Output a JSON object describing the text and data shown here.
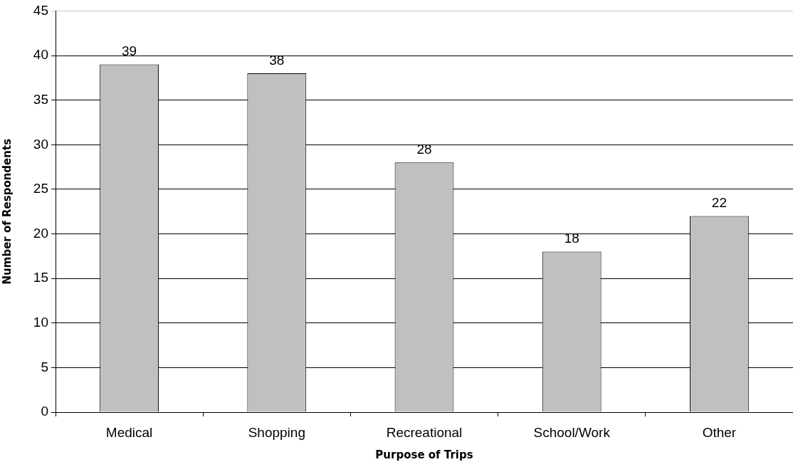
{
  "chart_data": {
    "type": "bar",
    "xlabel": "Purpose of Trips",
    "ylabel": "Number of Respondents",
    "categories": [
      "Medical",
      "Shopping",
      "Recreational",
      "School/Work",
      "Other"
    ],
    "values": [
      39,
      38,
      28,
      18,
      22
    ],
    "color": "#c0c0c0",
    "ylim": [
      0,
      45
    ],
    "yticks": [
      0,
      5,
      10,
      15,
      20,
      25,
      30,
      35,
      40,
      45
    ],
    "grid": "y",
    "data_labels": true
  }
}
